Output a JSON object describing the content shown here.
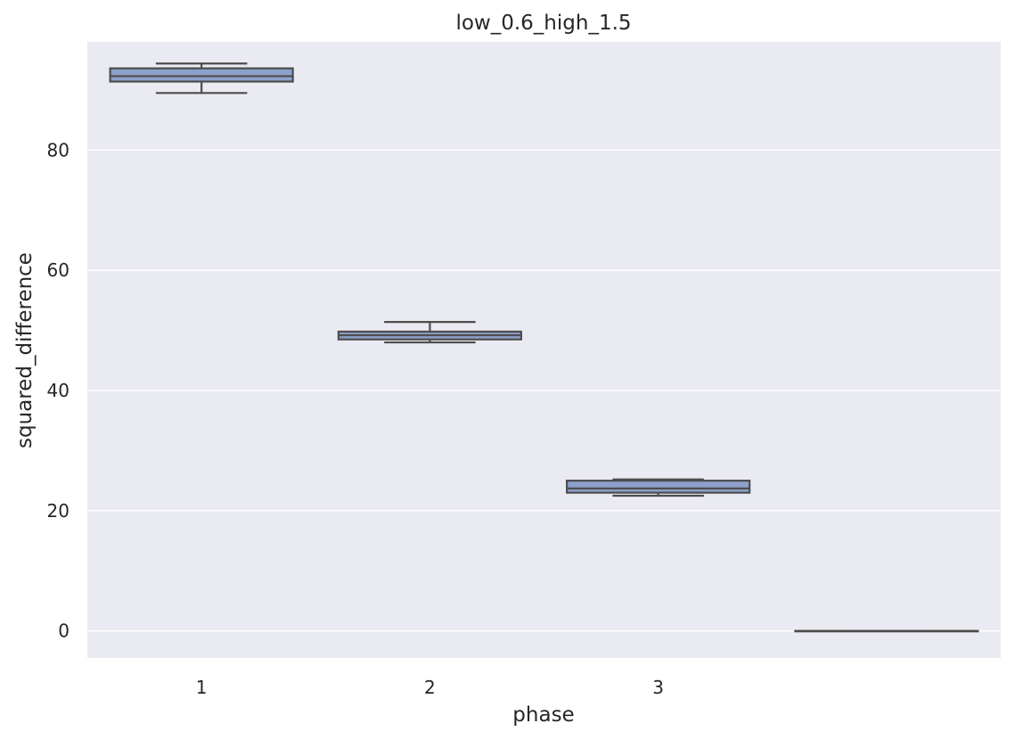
{
  "chart_data": {
    "type": "box",
    "title": "low_0.6_high_1.5",
    "xlabel": "phase",
    "ylabel": "squared_difference",
    "categories": [
      "1",
      "2",
      "3",
      ""
    ],
    "ylim": [
      -4.5,
      98
    ],
    "yticks": [
      0,
      20,
      40,
      60,
      80
    ],
    "grid": true,
    "boxes": [
      {
        "category": "1",
        "whislo": 89.5,
        "q1": 91.4,
        "med": 92.3,
        "q3": 93.6,
        "whishi": 94.4
      },
      {
        "category": "2",
        "whislo": 48.0,
        "q1": 48.5,
        "med": 49.2,
        "q3": 49.8,
        "whishi": 51.4
      },
      {
        "category": "3",
        "whislo": 22.5,
        "q1": 23.0,
        "med": 23.7,
        "q3": 25.0,
        "whishi": 25.2
      },
      {
        "category": "",
        "whislo": 0.0,
        "q1": 0.0,
        "med": 0.0,
        "q3": 0.0,
        "whishi": 0.0
      }
    ],
    "colors": {
      "box_fill": "#8da0cb",
      "box_edge": "#4d4d4d",
      "plot_bg": "#eaeaf2",
      "grid": "#ffffff"
    }
  }
}
